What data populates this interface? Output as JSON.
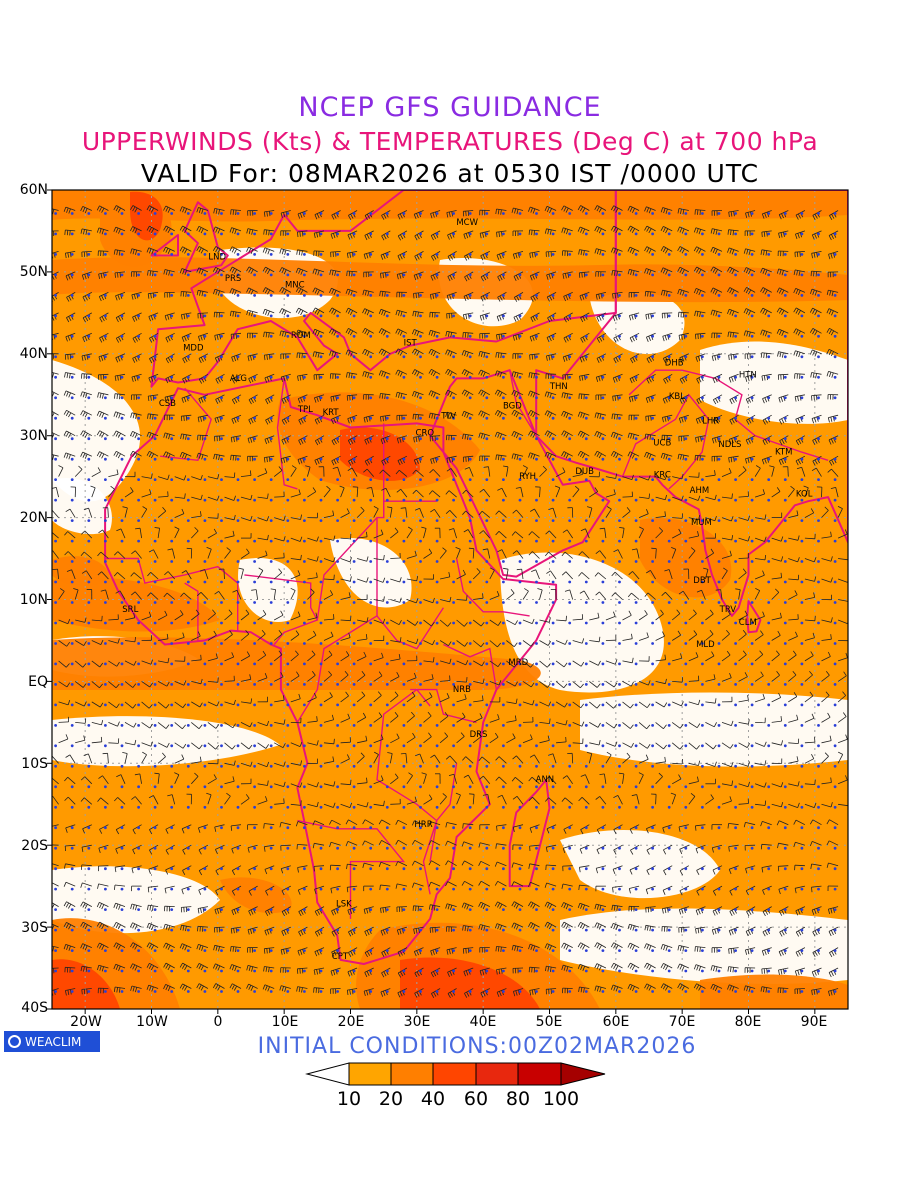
{
  "header": {
    "line1": "NCEP GFS GUIDANCE",
    "line2": "UPPERWINDS (Kts) & TEMPERATURES (Deg C) at 700 hPa",
    "line3": "VALID For: 08MAR2026 at 0530 IST /0000 UTC"
  },
  "axes": {
    "lat_labels": [
      "60N",
      "50N",
      "40N",
      "30N",
      "20N",
      "10N",
      "EQ",
      "10S",
      "20S",
      "30S",
      "40S"
    ],
    "lon_labels": [
      "20W",
      "10W",
      "0",
      "10E",
      "20E",
      "30E",
      "40E",
      "50E",
      "60E",
      "70E",
      "80E",
      "90E"
    ]
  },
  "stations": [
    {
      "code": "MCW",
      "lon": 37.6,
      "lat": 55.7
    },
    {
      "code": "LND",
      "lon": -0.1,
      "lat": 51.5
    },
    {
      "code": "PRS",
      "lon": 2.3,
      "lat": 48.9
    },
    {
      "code": "MNC",
      "lon": 11.6,
      "lat": 48.1
    },
    {
      "code": "ROM",
      "lon": 12.5,
      "lat": 41.9
    },
    {
      "code": "IST",
      "lon": 29.0,
      "lat": 41.0
    },
    {
      "code": "MDD",
      "lon": -3.7,
      "lat": 40.4
    },
    {
      "code": "ALG",
      "lon": 3.1,
      "lat": 36.7
    },
    {
      "code": "CSB",
      "lon": -7.6,
      "lat": 33.6
    },
    {
      "code": "TPL",
      "lon": 13.2,
      "lat": 32.9
    },
    {
      "code": "KRT",
      "lon": 17.0,
      "lat": 32.5
    },
    {
      "code": "CRO",
      "lon": 31.2,
      "lat": 30.0
    },
    {
      "code": "TLV",
      "lon": 34.8,
      "lat": 32.1
    },
    {
      "code": "BGD",
      "lon": 44.4,
      "lat": 33.3
    },
    {
      "code": "THN",
      "lon": 51.4,
      "lat": 35.7
    },
    {
      "code": "DHB",
      "lon": 68.8,
      "lat": 38.6
    },
    {
      "code": "HTN",
      "lon": 79.9,
      "lat": 37.1
    },
    {
      "code": "KBL",
      "lon": 69.2,
      "lat": 34.5
    },
    {
      "code": "LHR",
      "lon": 74.3,
      "lat": 31.5
    },
    {
      "code": "NDLS",
      "lon": 77.2,
      "lat": 28.6
    },
    {
      "code": "KTM",
      "lon": 85.3,
      "lat": 27.7
    },
    {
      "code": "UCB",
      "lon": 67.0,
      "lat": 28.8
    },
    {
      "code": "KRC",
      "lon": 67.0,
      "lat": 24.9
    },
    {
      "code": "AHM",
      "lon": 72.6,
      "lat": 23.0
    },
    {
      "code": "KOL",
      "lon": 88.4,
      "lat": 22.6
    },
    {
      "code": "RYH",
      "lon": 46.7,
      "lat": 24.7
    },
    {
      "code": "DUB",
      "lon": 55.3,
      "lat": 25.3
    },
    {
      "code": "MUM",
      "lon": 72.9,
      "lat": 19.1
    },
    {
      "code": "DBT",
      "lon": 73.0,
      "lat": 12.0
    },
    {
      "code": "TRV",
      "lon": 76.9,
      "lat": 8.5
    },
    {
      "code": "CLM",
      "lon": 79.9,
      "lat": 6.9
    },
    {
      "code": "MLD",
      "lon": 73.5,
      "lat": 4.2
    },
    {
      "code": "SRL",
      "lon": -13.2,
      "lat": 8.5
    },
    {
      "code": "MRD",
      "lon": 45.3,
      "lat": 2.0
    },
    {
      "code": "NRB",
      "lon": 36.8,
      "lat": -1.3
    },
    {
      "code": "DRS",
      "lon": 39.3,
      "lat": -6.8
    },
    {
      "code": "ANN",
      "lon": 49.3,
      "lat": -12.3
    },
    {
      "code": "HRR",
      "lon": 31.0,
      "lat": -17.8
    },
    {
      "code": "LSK",
      "lon": 19.0,
      "lat": -27.5
    },
    {
      "code": "CPT",
      "lon": 18.4,
      "lat": -33.9
    }
  ],
  "bottom": {
    "logo_text": "WEACLIM",
    "initial": "INITIAL CONDITIONS:00Z02MAR2026"
  },
  "colorbar": {
    "labels": [
      "10",
      "20",
      "40",
      "60",
      "80",
      "100"
    ],
    "colors": [
      "#ffffff",
      "#ffa500",
      "#ff7f00",
      "#ff4500",
      "#e8280e",
      "#c80000",
      "#a50000"
    ]
  }
}
